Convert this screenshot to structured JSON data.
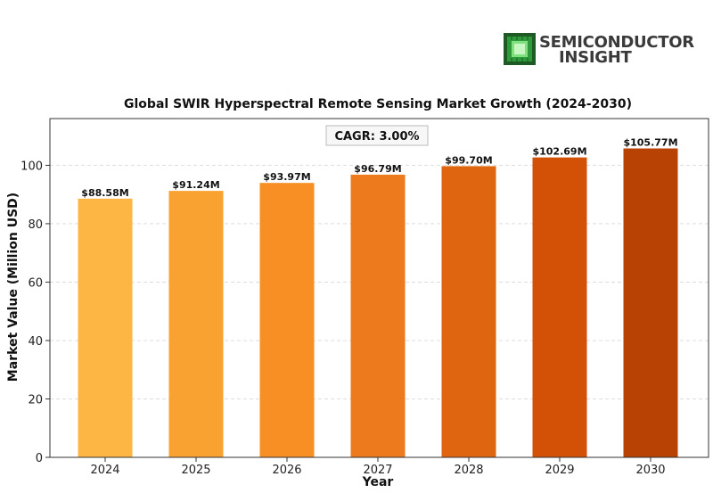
{
  "logo": {
    "line1": "SEMICONDUCTOR",
    "line2": "INSIGHT"
  },
  "chart_data": {
    "type": "bar",
    "title": "Global SWIR Hyperspectral Remote Sensing Market Growth (2024-2030)",
    "xlabel": "Year",
    "ylabel": "Market Value (Million USD)",
    "categories": [
      "2024",
      "2025",
      "2026",
      "2027",
      "2028",
      "2029",
      "2030"
    ],
    "values": [
      88.58,
      91.24,
      93.97,
      96.79,
      99.7,
      102.69,
      105.77
    ],
    "data_labels": [
      "$88.58M",
      "$91.24M",
      "$93.97M",
      "$96.79M",
      "$99.70M",
      "$102.69M",
      "$105.77M"
    ],
    "colors": [
      "#FDB643",
      "#FAA231",
      "#F78F25",
      "#EE7A1E",
      "#E06511",
      "#D35107",
      "#B84203"
    ],
    "ylim": [
      0,
      116
    ],
    "yticks": [
      "0",
      "20",
      "40",
      "60",
      "80",
      "100"
    ],
    "annotation": "CAGR: 3.00%",
    "grid": true
  }
}
